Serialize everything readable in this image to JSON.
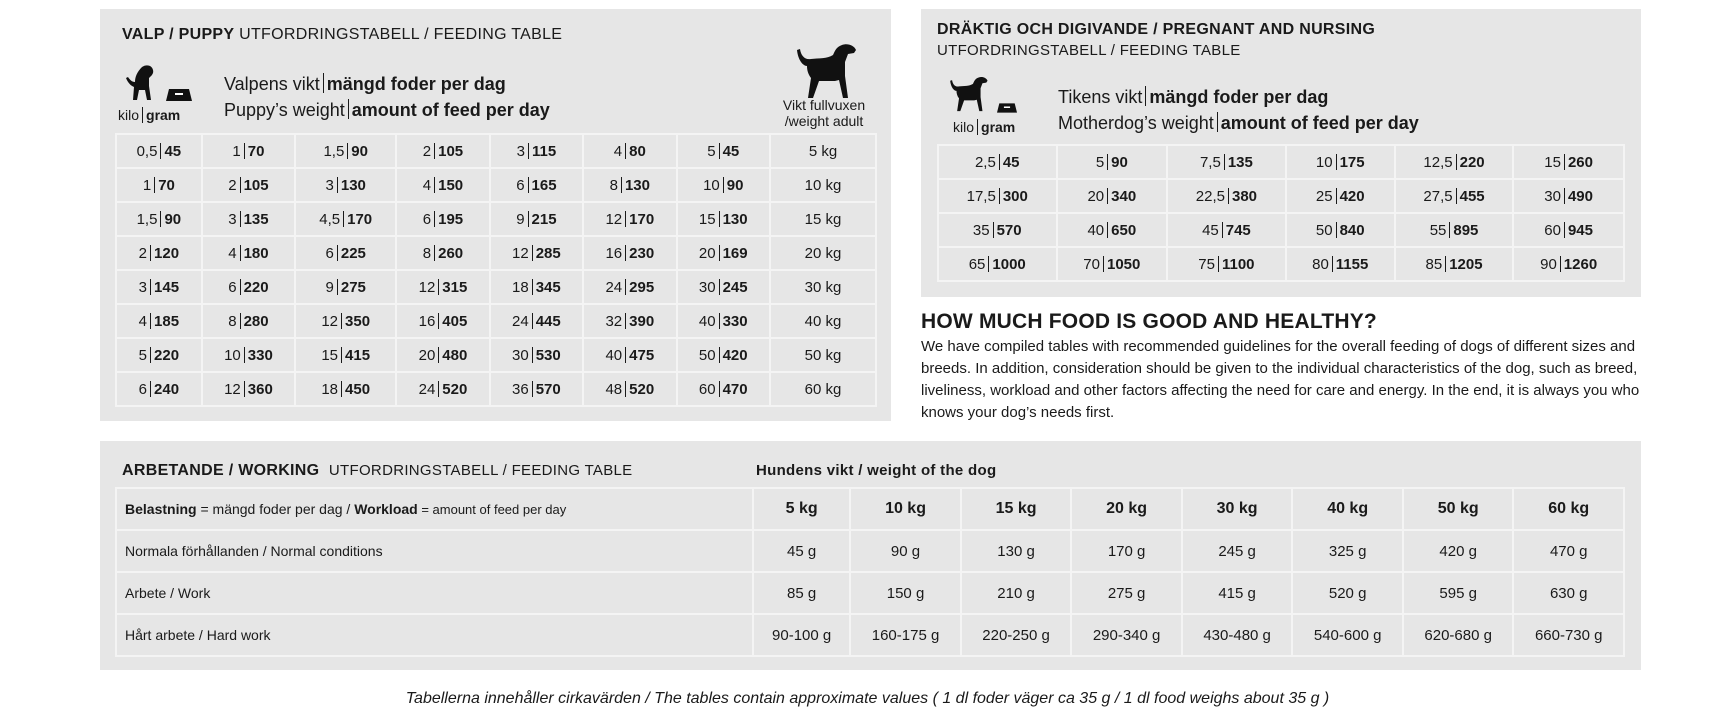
{
  "puppy": {
    "title_bold": "VALP / PUPPY",
    "title_rest": "UTFORDRINGSTABELL / FEEDING TABLE",
    "unit_kilo": "kilo",
    "unit_gram": "gram",
    "legend_sv_a": "Valpens vikt",
    "legend_sv_b": "mängd foder per dag",
    "legend_en_a": "Puppy’s weight",
    "legend_en_b": "amount of feed per day",
    "adult_label_1": "Vikt fullvuxen",
    "adult_label_2": "/weight adult",
    "rows": [
      {
        "cells": [
          [
            "0,5",
            "45"
          ],
          [
            "1",
            "70"
          ],
          [
            "1,5",
            "90"
          ],
          [
            "2",
            "105"
          ],
          [
            "3",
            "115"
          ],
          [
            "4",
            "80"
          ],
          [
            "5",
            "45"
          ]
        ],
        "adult": "5 kg"
      },
      {
        "cells": [
          [
            "1",
            "70"
          ],
          [
            "2",
            "105"
          ],
          [
            "3",
            "130"
          ],
          [
            "4",
            "150"
          ],
          [
            "6",
            "165"
          ],
          [
            "8",
            "130"
          ],
          [
            "10",
            "90"
          ]
        ],
        "adult": "10 kg"
      },
      {
        "cells": [
          [
            "1,5",
            "90"
          ],
          [
            "3",
            "135"
          ],
          [
            "4,5",
            "170"
          ],
          [
            "6",
            "195"
          ],
          [
            "9",
            "215"
          ],
          [
            "12",
            "170"
          ],
          [
            "15",
            "130"
          ]
        ],
        "adult": "15 kg"
      },
      {
        "cells": [
          [
            "2",
            "120"
          ],
          [
            "4",
            "180"
          ],
          [
            "6",
            "225"
          ],
          [
            "8",
            "260"
          ],
          [
            "12",
            "285"
          ],
          [
            "16",
            "230"
          ],
          [
            "20",
            "169"
          ]
        ],
        "adult": "20 kg"
      },
      {
        "cells": [
          [
            "3",
            "145"
          ],
          [
            "6",
            "220"
          ],
          [
            "9",
            "275"
          ],
          [
            "12",
            "315"
          ],
          [
            "18",
            "345"
          ],
          [
            "24",
            "295"
          ],
          [
            "30",
            "245"
          ]
        ],
        "adult": "30 kg"
      },
      {
        "cells": [
          [
            "4",
            "185"
          ],
          [
            "8",
            "280"
          ],
          [
            "12",
            "350"
          ],
          [
            "16",
            "405"
          ],
          [
            "24",
            "445"
          ],
          [
            "32",
            "390"
          ],
          [
            "40",
            "330"
          ]
        ],
        "adult": "40 kg"
      },
      {
        "cells": [
          [
            "5",
            "220"
          ],
          [
            "10",
            "330"
          ],
          [
            "15",
            "415"
          ],
          [
            "20",
            "480"
          ],
          [
            "30",
            "530"
          ],
          [
            "40",
            "475"
          ],
          [
            "50",
            "420"
          ]
        ],
        "adult": "50 kg"
      },
      {
        "cells": [
          [
            "6",
            "240"
          ],
          [
            "12",
            "360"
          ],
          [
            "18",
            "450"
          ],
          [
            "24",
            "520"
          ],
          [
            "36",
            "570"
          ],
          [
            "48",
            "520"
          ],
          [
            "60",
            "470"
          ]
        ],
        "adult": "60 kg"
      }
    ]
  },
  "nursing": {
    "title": "DRÄKTIG OCH DIGIVANDE / PREGNANT AND NURSING",
    "subtitle": "UTFORDRINGSTABELL / FEEDING TABLE",
    "unit_kilo": "kilo",
    "unit_gram": "gram",
    "legend_sv_a": "Tikens vikt",
    "legend_sv_b": "mängd foder per dag",
    "legend_en_a": "Motherdog’s weight",
    "legend_en_b": "amount of feed per day",
    "rows": [
      [
        [
          "2,5",
          "45"
        ],
        [
          "5",
          "90"
        ],
        [
          "7,5",
          "135"
        ],
        [
          "10",
          "175"
        ],
        [
          "12,5",
          "220"
        ],
        [
          "15",
          "260"
        ]
      ],
      [
        [
          "17,5",
          "300"
        ],
        [
          "20",
          "340"
        ],
        [
          "22,5",
          "380"
        ],
        [
          "25",
          "420"
        ],
        [
          "27,5",
          "455"
        ],
        [
          "30",
          "490"
        ]
      ],
      [
        [
          "35",
          "570"
        ],
        [
          "40",
          "650"
        ],
        [
          "45",
          "745"
        ],
        [
          "50",
          "840"
        ],
        [
          "55",
          "895"
        ],
        [
          "60",
          "945"
        ]
      ],
      [
        [
          "65",
          "1000"
        ],
        [
          "70",
          "1050"
        ],
        [
          "75",
          "1100"
        ],
        [
          "80",
          "1155"
        ],
        [
          "85",
          "1205"
        ],
        [
          "90",
          "1260"
        ]
      ]
    ]
  },
  "info": {
    "heading": "HOW MUCH FOOD IS GOOD AND HEALTHY?",
    "body": "We have compiled tables with recommended guidelines for the overall feeding of dogs of different sizes and breeds. In addition, consideration should be given to the individual characteristics of the dog, such as breed, liveliness, workload and other factors affecting the need for care and energy. In the end, it is always you who knows your dog’s needs first."
  },
  "working": {
    "title_bold": "ARBETANDE / WORKING",
    "title_rest": "UTFORDRINGSTABELL / FEEDING TABLE",
    "weight_heading": "Hundens vikt / weight of the dog",
    "header_label_b1": "Belastning",
    "header_label_t1": " = mängd foder per dag / ",
    "header_label_b2": "Workload",
    "header_label_t2": " = amount of feed per day",
    "weights": [
      "5 kg",
      "10 kg",
      "15 kg",
      "20 kg",
      "30 kg",
      "40 kg",
      "50 kg",
      "60 kg"
    ],
    "rows": [
      {
        "label": "Normala förhållanden / Normal conditions",
        "values": [
          "45 g",
          "90 g",
          "130 g",
          "170 g",
          "245 g",
          "325 g",
          "420 g",
          "470 g"
        ]
      },
      {
        "label": "Arbete / Work",
        "values": [
          "85 g",
          "150 g",
          "210 g",
          "275 g",
          "415 g",
          "520 g",
          "595 g",
          "630 g"
        ]
      },
      {
        "label": "Hårt arbete / Hard work",
        "values": [
          "90-100 g",
          "160-175 g",
          "220-250 g",
          "290-340 g",
          "430-480 g",
          "540-600 g",
          "620-680 g",
          "660-730 g"
        ]
      }
    ]
  },
  "footer": "Tabellerna innehåller cirkavärden / The tables contain approximate values ( 1 dl foder väger ca 35 g / 1 dl food weighs about 35 g )"
}
